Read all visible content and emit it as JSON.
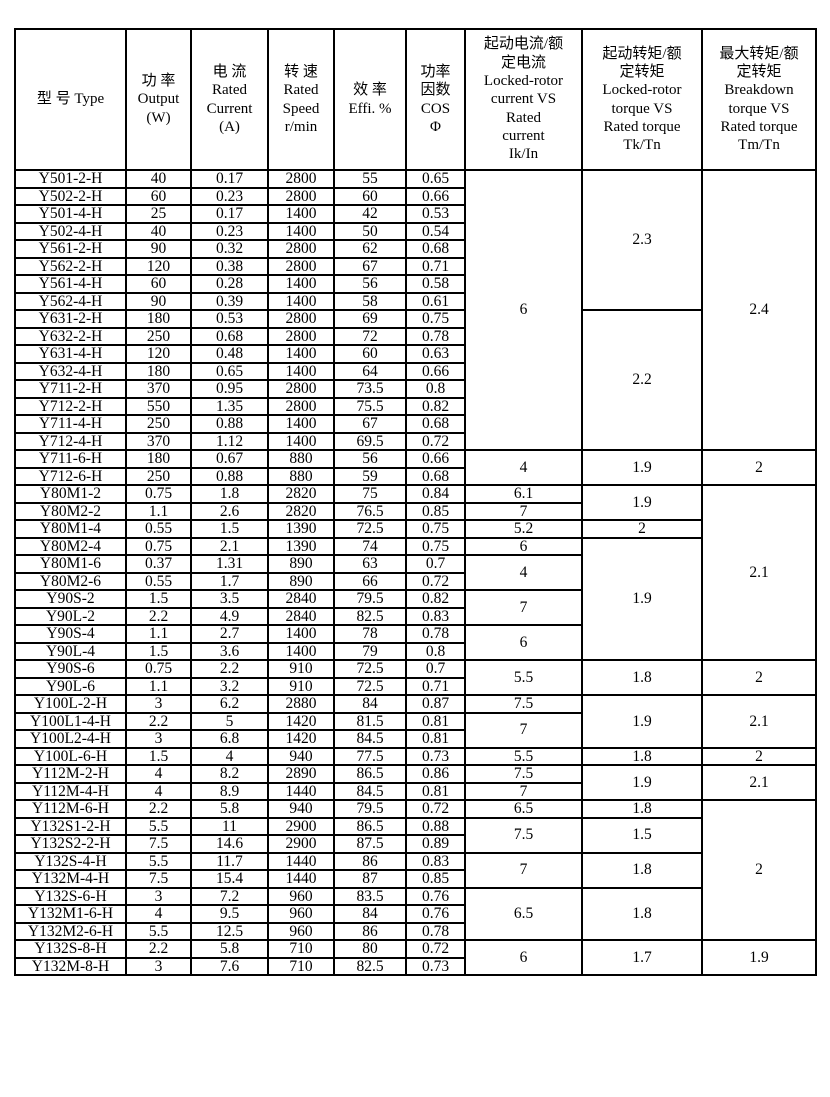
{
  "table": {
    "header": [
      {
        "id": "type",
        "text": "型 号 Type"
      },
      {
        "id": "output",
        "text": "功 率\nOutput\n(W)"
      },
      {
        "id": "current",
        "text": "电 流\nRated\nCurrent\n(A)"
      },
      {
        "id": "speed",
        "text": "转 速\nRated\nSpeed\nr/min"
      },
      {
        "id": "efficiency",
        "text": "效 率\nEffi. %"
      },
      {
        "id": "power_factor",
        "text": "功率\n因数\nCOS\nΦ"
      },
      {
        "id": "ik_in",
        "text": "起动电流/额\n定电流\nLocked-rotor\ncurrent VS\nRated\ncurrent\nIk/In"
      },
      {
        "id": "tk_tn",
        "text": "起动转矩/额\n定转矩\nLocked-rotor\ntorque VS\nRated torque\nTk/Tn"
      },
      {
        "id": "tm_tn",
        "text": "最大转矩/额\n定转矩\nBreakdown\ntorque VS\nRated torque\nTm/Tn"
      }
    ],
    "column_ids": [
      "type",
      "output",
      "current",
      "speed",
      "efficiency",
      "power_factor"
    ],
    "rows": [
      [
        "Y501-2-H",
        "40",
        "0.17",
        "2800",
        "55",
        "0.65"
      ],
      [
        "Y502-2-H",
        "60",
        "0.23",
        "2800",
        "60",
        "0.66"
      ],
      [
        "Y501-4-H",
        "25",
        "0.17",
        "1400",
        "42",
        "0.53"
      ],
      [
        "Y502-4-H",
        "40",
        "0.23",
        "1400",
        "50",
        "0.54"
      ],
      [
        "Y561-2-H",
        "90",
        "0.32",
        "2800",
        "62",
        "0.68"
      ],
      [
        "Y562-2-H",
        "120",
        "0.38",
        "2800",
        "67",
        "0.71"
      ],
      [
        "Y561-4-H",
        "60",
        "0.28",
        "1400",
        "56",
        "0.58"
      ],
      [
        "Y562-4-H",
        "90",
        "0.39",
        "1400",
        "58",
        "0.61"
      ],
      [
        "Y631-2-H",
        "180",
        "0.53",
        "2800",
        "69",
        "0.75"
      ],
      [
        "Y632-2-H",
        "250",
        "0.68",
        "2800",
        "72",
        "0.78"
      ],
      [
        "Y631-4-H",
        "120",
        "0.48",
        "1400",
        "60",
        "0.63"
      ],
      [
        "Y632-4-H",
        "180",
        "0.65",
        "1400",
        "64",
        "0.66"
      ],
      [
        "Y711-2-H",
        "370",
        "0.95",
        "2800",
        "73.5",
        "0.8"
      ],
      [
        "Y712-2-H",
        "550",
        "1.35",
        "2800",
        "75.5",
        "0.82"
      ],
      [
        "Y711-4-H",
        "250",
        "0.88",
        "1400",
        "67",
        "0.68"
      ],
      [
        "Y712-4-H",
        "370",
        "1.12",
        "1400",
        "69.5",
        "0.72"
      ],
      [
        "Y711-6-H",
        "180",
        "0.67",
        "880",
        "56",
        "0.66"
      ],
      [
        "Y712-6-H",
        "250",
        "0.88",
        "880",
        "59",
        "0.68"
      ],
      [
        "Y80M1-2",
        "0.75",
        "1.8",
        "2820",
        "75",
        "0.84"
      ],
      [
        "Y80M2-2",
        "1.1",
        "2.6",
        "2820",
        "76.5",
        "0.85"
      ],
      [
        "Y80M1-4",
        "0.55",
        "1.5",
        "1390",
        "72.5",
        "0.75"
      ],
      [
        "Y80M2-4",
        "0.75",
        "2.1",
        "1390",
        "74",
        "0.75"
      ],
      [
        "Y80M1-6",
        "0.37",
        "1.31",
        "890",
        "63",
        "0.7"
      ],
      [
        "Y80M2-6",
        "0.55",
        "1.7",
        "890",
        "66",
        "0.72"
      ],
      [
        "Y90S-2",
        "1.5",
        "3.5",
        "2840",
        "79.5",
        "0.82"
      ],
      [
        "Y90L-2",
        "2.2",
        "4.9",
        "2840",
        "82.5",
        "0.83"
      ],
      [
        "Y90S-4",
        "1.1",
        "2.7",
        "1400",
        "78",
        "0.78"
      ],
      [
        "Y90L-4",
        "1.5",
        "3.6",
        "1400",
        "79",
        "0.8"
      ],
      [
        "Y90S-6",
        "0.75",
        "2.2",
        "910",
        "72.5",
        "0.7"
      ],
      [
        "Y90L-6",
        "1.1",
        "3.2",
        "910",
        "72.5",
        "0.71"
      ],
      [
        "Y100L-2-H",
        "3",
        "6.2",
        "2880",
        "84",
        "0.87"
      ],
      [
        "Y100L1-4-H",
        "2.2",
        "5",
        "1420",
        "81.5",
        "0.81"
      ],
      [
        "Y100L2-4-H",
        "3",
        "6.8",
        "1420",
        "84.5",
        "0.81"
      ],
      [
        "Y100L-6-H",
        "1.5",
        "4",
        "940",
        "77.5",
        "0.73"
      ],
      [
        "Y112M-2-H",
        "4",
        "8.2",
        "2890",
        "86.5",
        "0.86"
      ],
      [
        "Y112M-4-H",
        "4",
        "8.9",
        "1440",
        "84.5",
        "0.81"
      ],
      [
        "Y112M-6-H",
        "2.2",
        "5.8",
        "940",
        "79.5",
        "0.72"
      ],
      [
        "Y132S1-2-H",
        "5.5",
        "11",
        "2900",
        "86.5",
        "0.88"
      ],
      [
        "Y132S2-2-H",
        "7.5",
        "14.6",
        "2900",
        "87.5",
        "0.89"
      ],
      [
        "Y132S-4-H",
        "5.5",
        "11.7",
        "1440",
        "86",
        "0.83"
      ],
      [
        "Y132M-4-H",
        "7.5",
        "15.4",
        "1440",
        "87",
        "0.85"
      ],
      [
        "Y132S-6-H",
        "3",
        "7.2",
        "960",
        "83.5",
        "0.76"
      ],
      [
        "Y132M1-6-H",
        "4",
        "9.5",
        "960",
        "84",
        "0.76"
      ],
      [
        "Y132M2-6-H",
        "5.5",
        "12.5",
        "960",
        "86",
        "0.78"
      ],
      [
        "Y132S-8-H",
        "2.2",
        "5.8",
        "710",
        "80",
        "0.72"
      ],
      [
        "Y132M-8-H",
        "3",
        "7.6",
        "710",
        "82.5",
        "0.73"
      ]
    ],
    "merged_columns": {
      "ik_in": [
        {
          "row": 0,
          "span": 16,
          "value": "6"
        },
        {
          "row": 16,
          "span": 2,
          "value": "4"
        },
        {
          "row": 18,
          "span": 1,
          "value": "6.1"
        },
        {
          "row": 19,
          "span": 1,
          "value": "7"
        },
        {
          "row": 20,
          "span": 1,
          "value": "5.2"
        },
        {
          "row": 21,
          "span": 1,
          "value": "6"
        },
        {
          "row": 22,
          "span": 2,
          "value": "4"
        },
        {
          "row": 24,
          "span": 2,
          "value": "7"
        },
        {
          "row": 26,
          "span": 2,
          "value": "6"
        },
        {
          "row": 28,
          "span": 2,
          "value": "5.5"
        },
        {
          "row": 30,
          "span": 1,
          "value": "7.5"
        },
        {
          "row": 31,
          "span": 2,
          "value": "7"
        },
        {
          "row": 33,
          "span": 1,
          "value": "5.5"
        },
        {
          "row": 34,
          "span": 1,
          "value": "7.5"
        },
        {
          "row": 35,
          "span": 1,
          "value": "7"
        },
        {
          "row": 36,
          "span": 1,
          "value": "6.5"
        },
        {
          "row": 37,
          "span": 2,
          "value": "7.5"
        },
        {
          "row": 39,
          "span": 2,
          "value": "7"
        },
        {
          "row": 41,
          "span": 3,
          "value": "6.5"
        },
        {
          "row": 44,
          "span": 2,
          "value": "6"
        }
      ],
      "tk_tn": [
        {
          "row": 0,
          "span": 8,
          "value": "2.3"
        },
        {
          "row": 8,
          "span": 8,
          "value": "2.2"
        },
        {
          "row": 16,
          "span": 2,
          "value": "1.9"
        },
        {
          "row": 18,
          "span": 2,
          "value": "1.9"
        },
        {
          "row": 20,
          "span": 1,
          "value": "2"
        },
        {
          "row": 21,
          "span": 7,
          "value": "1.9"
        },
        {
          "row": 28,
          "span": 2,
          "value": "1.8"
        },
        {
          "row": 30,
          "span": 3,
          "value": "1.9"
        },
        {
          "row": 33,
          "span": 1,
          "value": "1.8"
        },
        {
          "row": 34,
          "span": 2,
          "value": "1.9"
        },
        {
          "row": 36,
          "span": 1,
          "value": "1.8"
        },
        {
          "row": 37,
          "span": 2,
          "value": "1.5"
        },
        {
          "row": 39,
          "span": 2,
          "value": "1.8"
        },
        {
          "row": 41,
          "span": 3,
          "value": "1.8"
        },
        {
          "row": 44,
          "span": 2,
          "value": "1.7"
        }
      ],
      "tm_tn": [
        {
          "row": 0,
          "span": 16,
          "value": "2.4"
        },
        {
          "row": 16,
          "span": 2,
          "value": "2"
        },
        {
          "row": 18,
          "span": 10,
          "value": "2.1"
        },
        {
          "row": 28,
          "span": 2,
          "value": "2"
        },
        {
          "row": 30,
          "span": 3,
          "value": "2.1"
        },
        {
          "row": 33,
          "span": 1,
          "value": "2"
        },
        {
          "row": 34,
          "span": 2,
          "value": "2.1"
        },
        {
          "row": 36,
          "span": 8,
          "value": "2"
        },
        {
          "row": 44,
          "span": 2,
          "value": "1.9"
        }
      ]
    }
  }
}
